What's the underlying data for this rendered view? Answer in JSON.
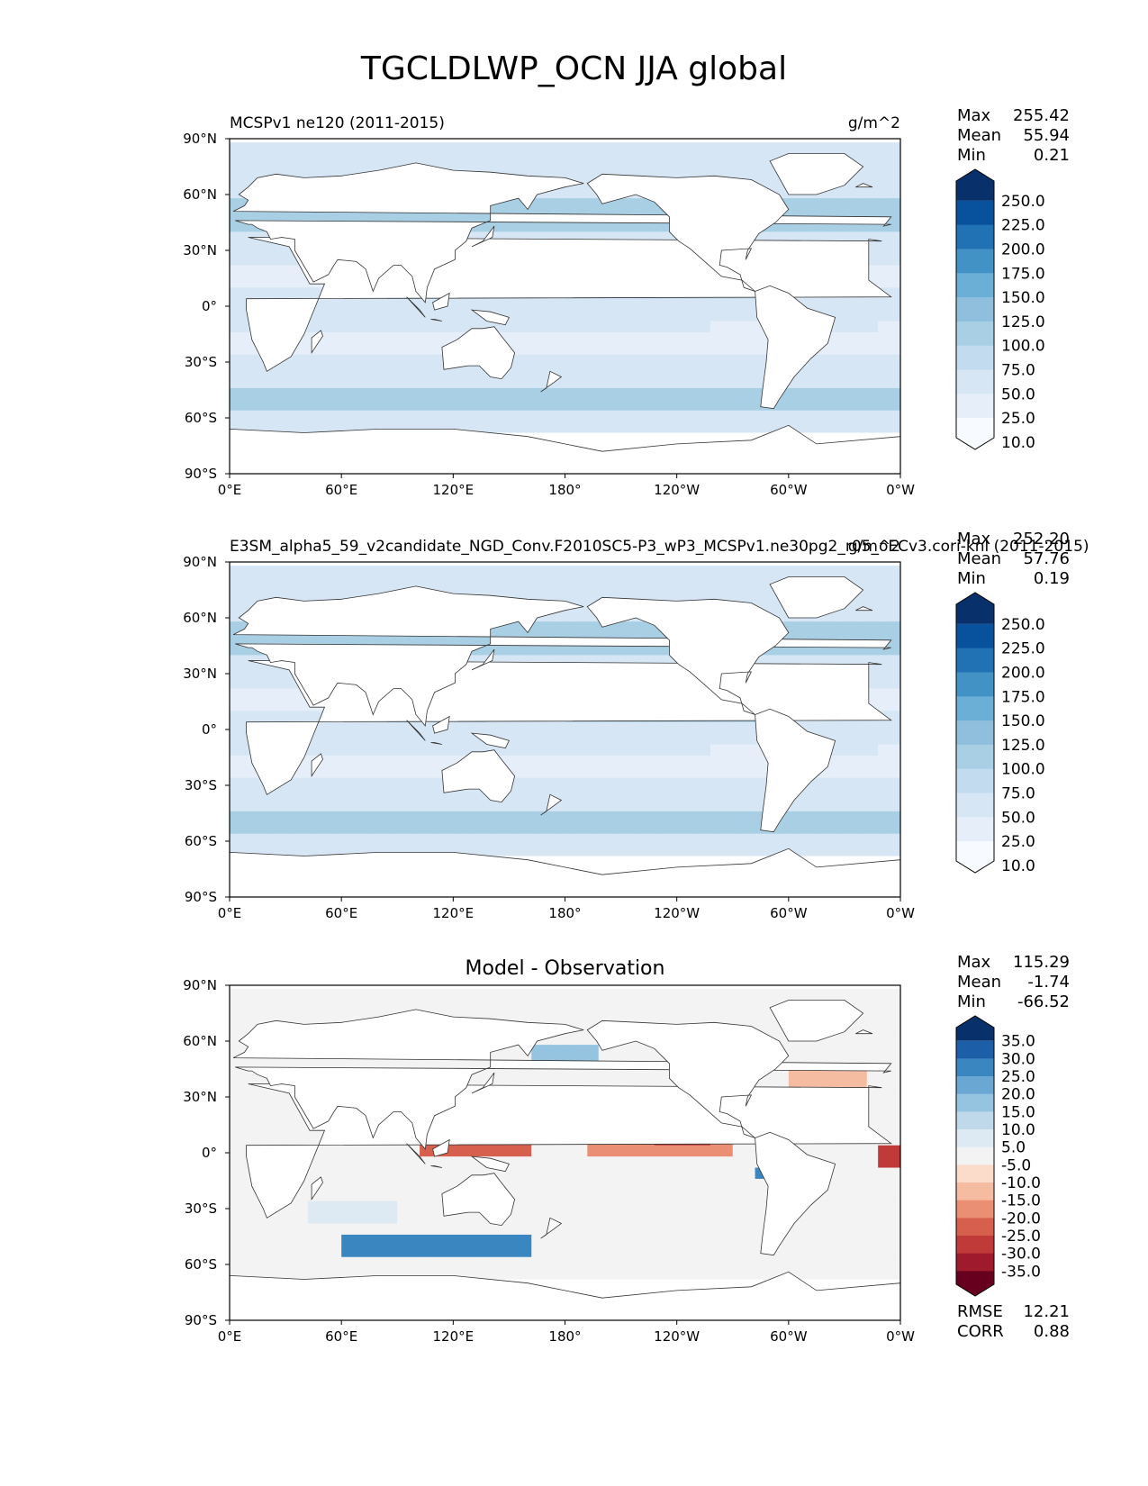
{
  "title": "TGCLDLWP_OCN JJA global",
  "chart_data": [
    {
      "type": "heatmap",
      "panel": "test",
      "left_title": "MCSPv1 ne120 (2011-2015)",
      "center_title": "",
      "units": "g/m^2",
      "stats": [
        {
          "label": "Max",
          "value": "255.42"
        },
        {
          "label": "Mean",
          "value": "55.94"
        },
        {
          "label": "Min",
          "value": "0.21"
        }
      ],
      "colorbar": {
        "levels": [
          "250.0",
          "225.0",
          "200.0",
          "175.0",
          "150.0",
          "125.0",
          "100.0",
          "75.0",
          "50.0",
          "25.0",
          "10.0"
        ],
        "colors": [
          "#08306b",
          "#08519c",
          "#2171b5",
          "#4292c6",
          "#6baed6",
          "#8fbfdd",
          "#a9cfe5",
          "#c2dbef",
          "#d6e6f4",
          "#e6eff9",
          "#f7fbff"
        ],
        "extend": "both"
      },
      "xticks": [
        "0°E",
        "60°E",
        "120°E",
        "180°",
        "120°W",
        "60°W",
        "0°W"
      ],
      "yticks": [
        "90°N",
        "60°N",
        "30°N",
        "0°",
        "30°S",
        "60°S",
        "90°S"
      ],
      "xlim": [
        0,
        360
      ],
      "ylim": [
        -90,
        90
      ]
    },
    {
      "type": "heatmap",
      "panel": "reference",
      "left_title": "E3SM_alpha5_59_v2candidate_NGD_Conv.F2010SC5-P3_wP3_MCSPv1.ne30pg2_r05_oECv3.cori-knl (2011-2015)",
      "center_title": "",
      "units": "g/m^2",
      "stats": [
        {
          "label": "Max",
          "value": "252.20"
        },
        {
          "label": "Mean",
          "value": "57.76"
        },
        {
          "label": "Min",
          "value": "0.19"
        }
      ],
      "colorbar": {
        "levels": [
          "250.0",
          "225.0",
          "200.0",
          "175.0",
          "150.0",
          "125.0",
          "100.0",
          "75.0",
          "50.0",
          "25.0",
          "10.0"
        ],
        "colors": [
          "#08306b",
          "#08519c",
          "#2171b5",
          "#4292c6",
          "#6baed6",
          "#8fbfdd",
          "#a9cfe5",
          "#c2dbef",
          "#d6e6f4",
          "#e6eff9",
          "#f7fbff"
        ],
        "extend": "both"
      },
      "xticks": [
        "0°E",
        "60°E",
        "120°E",
        "180°",
        "120°W",
        "60°W",
        "0°W"
      ],
      "yticks": [
        "90°N",
        "60°N",
        "30°N",
        "0°",
        "30°S",
        "60°S",
        "90°S"
      ],
      "xlim": [
        0,
        360
      ],
      "ylim": [
        -90,
        90
      ]
    },
    {
      "type": "heatmap",
      "panel": "difference",
      "left_title": "",
      "center_title": "Model - Observation",
      "units": "",
      "stats": [
        {
          "label": "Max",
          "value": "115.29"
        },
        {
          "label": "Mean",
          "value": "-1.74"
        },
        {
          "label": "Min",
          "value": "-66.52"
        }
      ],
      "colorbar": {
        "levels": [
          "35.0",
          "30.0",
          "25.0",
          "20.0",
          "15.0",
          "10.0",
          "5.0",
          "-5.0",
          "-10.0",
          "-15.0",
          "-20.0",
          "-25.0",
          "-30.0",
          "-35.0"
        ],
        "colors": [
          "#08306b",
          "#1c5ea8",
          "#3a86c0",
          "#6aa8d3",
          "#94c4df",
          "#bfd8ea",
          "#dde9f3",
          "#f3f3f3",
          "#fbdcca",
          "#f6bca2",
          "#eb8f74",
          "#d6604d",
          "#c03a3a",
          "#9e1a2c",
          "#67001f"
        ],
        "extend": "both"
      },
      "xticks": [
        "0°E",
        "60°E",
        "120°E",
        "180°",
        "120°W",
        "60°W",
        "0°W"
      ],
      "yticks": [
        "90°N",
        "60°N",
        "30°N",
        "0°",
        "30°S",
        "60°S",
        "90°S"
      ],
      "xlim": [
        0,
        360
      ],
      "ylim": [
        -90,
        90
      ],
      "metrics": [
        {
          "label": "RMSE",
          "value": "12.21"
        },
        {
          "label": "CORR",
          "value": "0.88"
        }
      ]
    }
  ]
}
